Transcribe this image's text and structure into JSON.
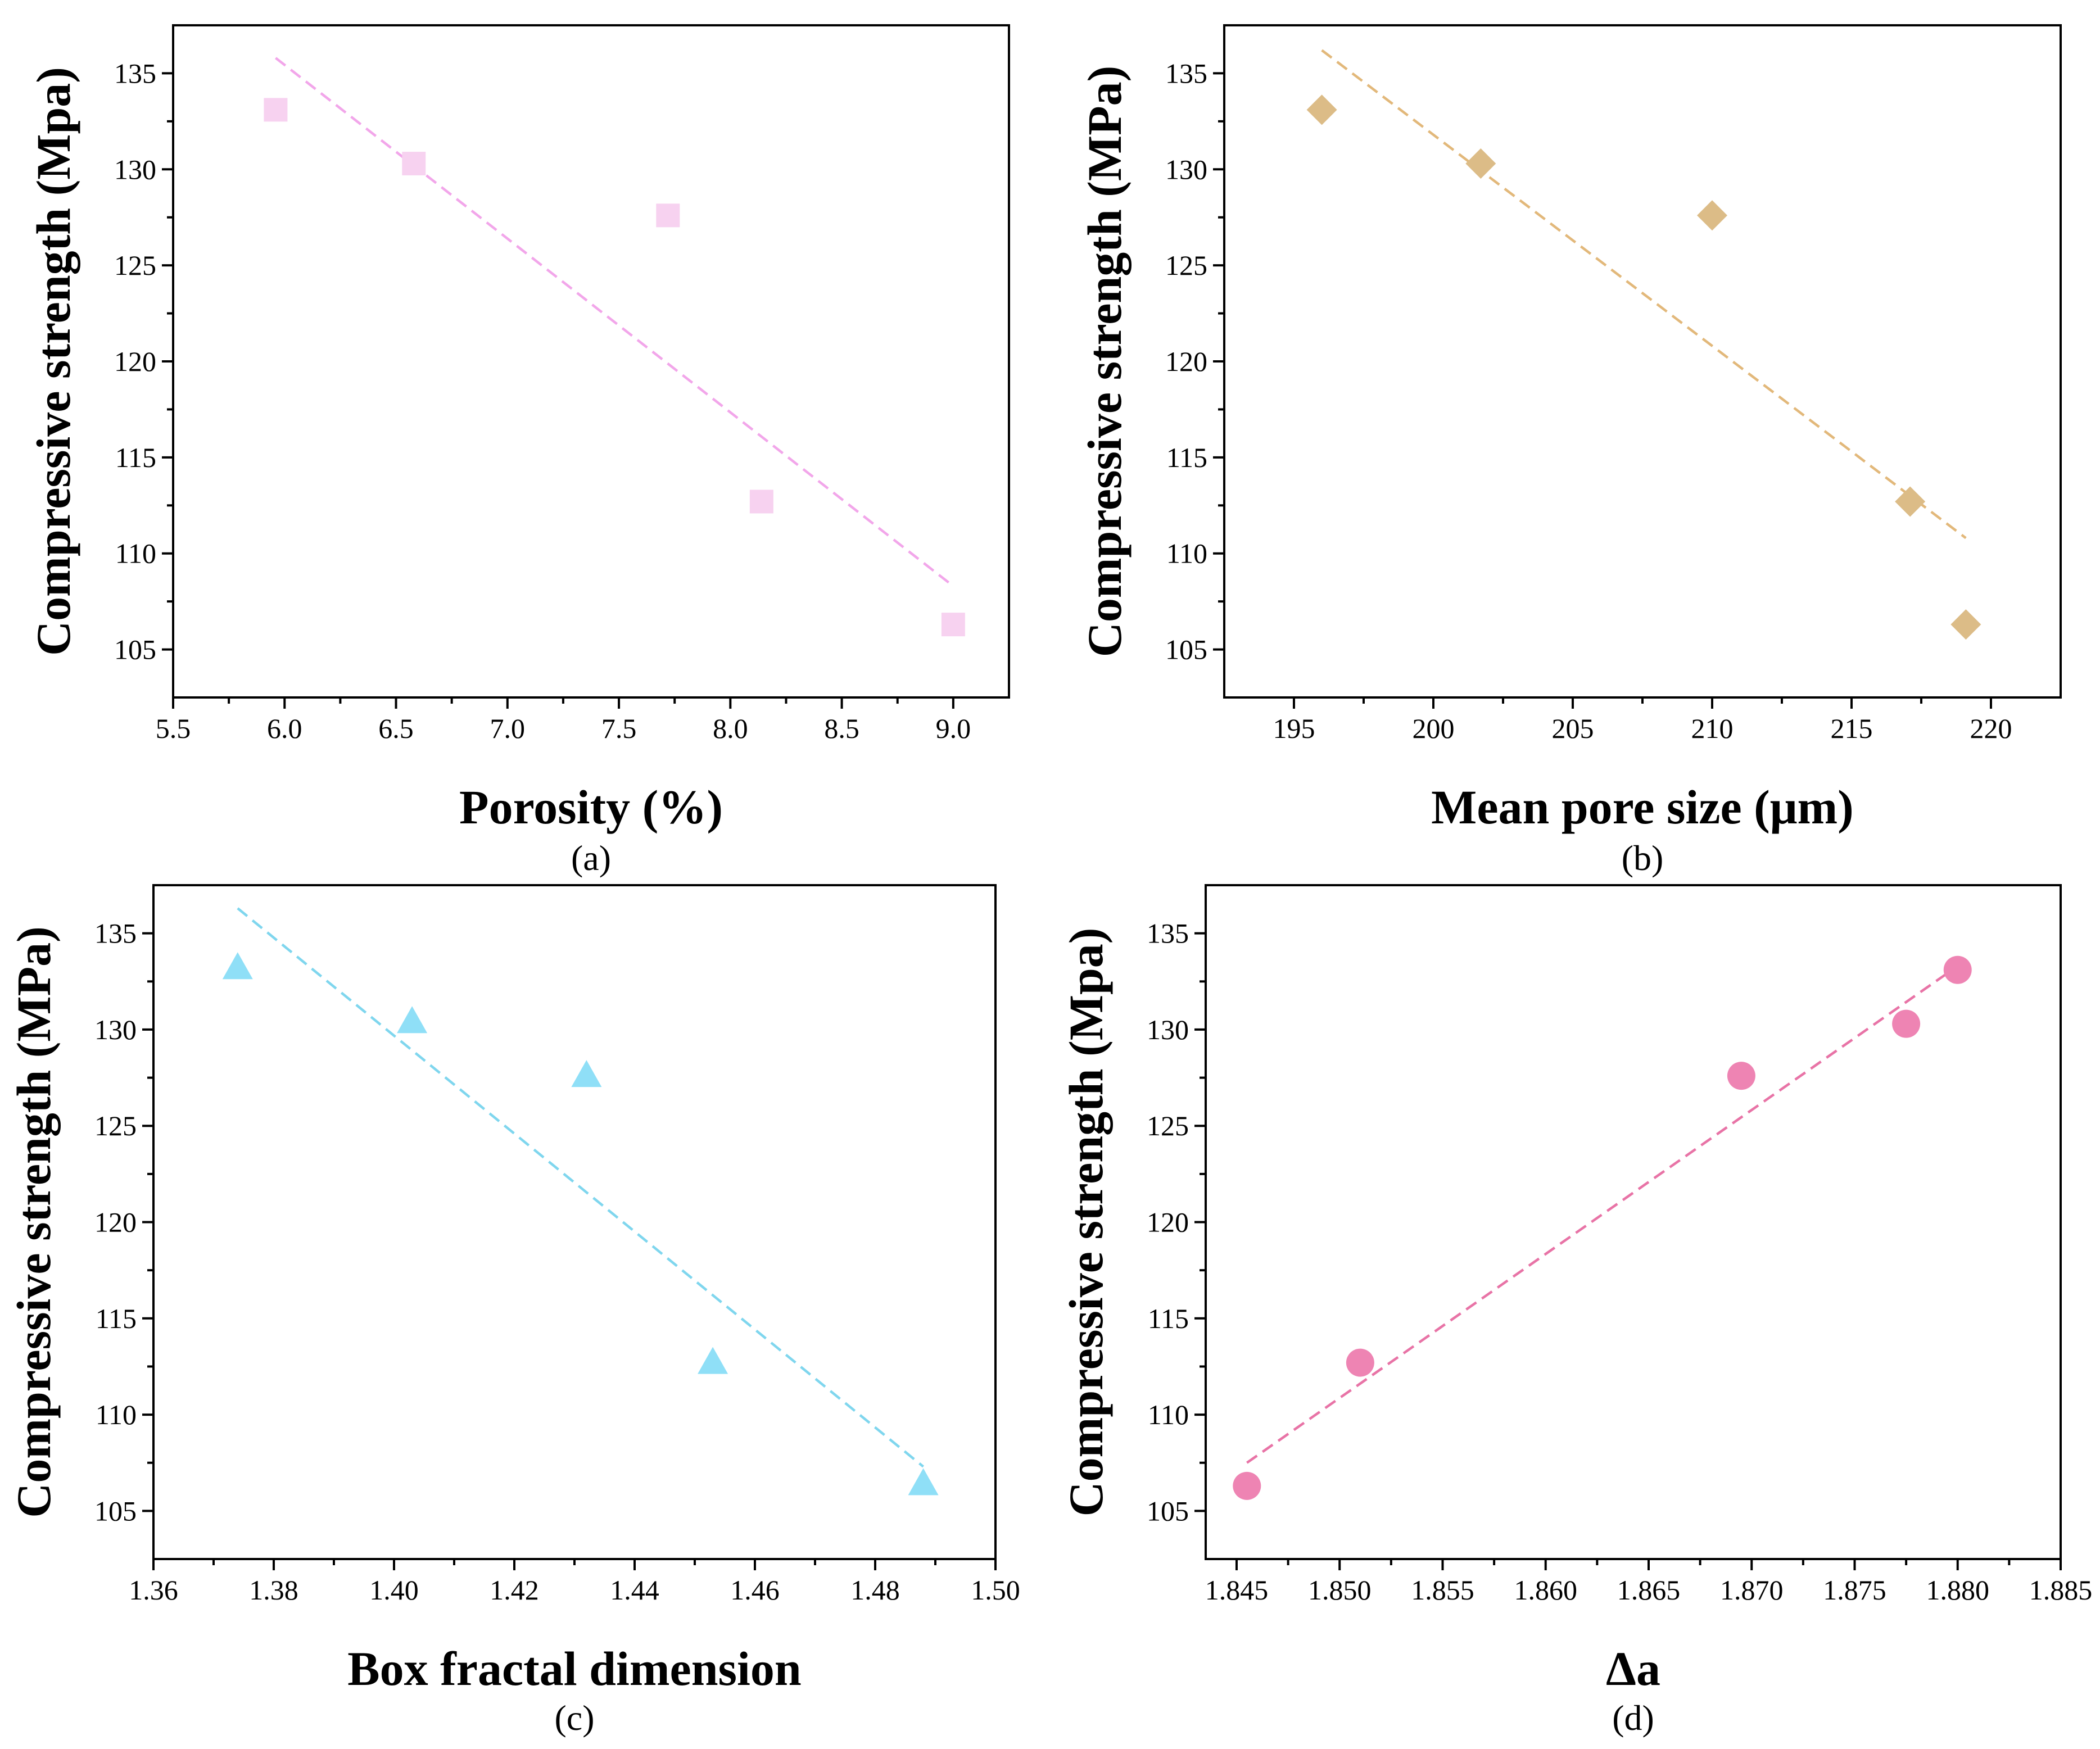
{
  "figure": {
    "panels": [
      {
        "label": "(a)"
      },
      {
        "label": "(b)"
      },
      {
        "label": "(c)"
      },
      {
        "label": "(d)"
      }
    ]
  },
  "chart_data": [
    {
      "type": "scatter",
      "panel": "(a)",
      "xlabel": "Porosity (%)",
      "ylabel": "Compressive strength (Mpa)",
      "xlim": [
        5.5,
        9.25
      ],
      "ylim": [
        102.5,
        137.5
      ],
      "xticks": [
        5.5,
        6.0,
        6.5,
        7.0,
        7.5,
        8.0,
        8.5,
        9.0
      ],
      "xtick_labels": [
        "5.5",
        "6.0",
        "6.5",
        "7.0",
        "7.5",
        "8.0",
        "8.5",
        "9.0"
      ],
      "yticks": [
        105,
        110,
        115,
        120,
        125,
        130,
        135
      ],
      "ytick_labels": [
        "105",
        "110",
        "115",
        "120",
        "125",
        "130",
        "135"
      ],
      "marker": "square",
      "marker_color": "#f7d2f0",
      "line_color": "#f2a6ea",
      "points": [
        {
          "x": 5.96,
          "y": 133.1
        },
        {
          "x": 6.58,
          "y": 130.3
        },
        {
          "x": 7.72,
          "y": 127.6
        },
        {
          "x": 8.14,
          "y": 112.7
        },
        {
          "x": 9.0,
          "y": 106.3
        }
      ],
      "fit_line": [
        [
          5.96,
          135.8
        ],
        [
          9.0,
          108.3
        ]
      ]
    },
    {
      "type": "scatter",
      "panel": "(b)",
      "xlabel": "Mean pore size (μm)",
      "ylabel": "Compressive strength (MPa)",
      "xlim": [
        192.5,
        222.5
      ],
      "ylim": [
        102.5,
        137.5
      ],
      "xticks": [
        195,
        200,
        205,
        210,
        215,
        220
      ],
      "xtick_labels": [
        "195",
        "200",
        "205",
        "210",
        "215",
        "220"
      ],
      "yticks": [
        105,
        110,
        115,
        120,
        125,
        130,
        135
      ],
      "ytick_labels": [
        "105",
        "110",
        "115",
        "120",
        "125",
        "130",
        "135"
      ],
      "marker": "diamond",
      "marker_color": "#dcbc87",
      "line_color": "#e2b87a",
      "points": [
        {
          "x": 196.0,
          "y": 133.1
        },
        {
          "x": 201.7,
          "y": 130.3
        },
        {
          "x": 210.0,
          "y": 127.6
        },
        {
          "x": 217.1,
          "y": 112.7
        },
        {
          "x": 219.1,
          "y": 106.3
        }
      ],
      "fit_line": [
        [
          196.0,
          136.2
        ],
        [
          219.1,
          110.8
        ]
      ]
    },
    {
      "type": "scatter",
      "panel": "(c)",
      "xlabel": "Box fractal dimension",
      "ylabel": "Compressive strength (MPa)",
      "xlim": [
        1.36,
        1.5
      ],
      "ylim": [
        102.5,
        137.5
      ],
      "xticks": [
        1.36,
        1.38,
        1.4,
        1.42,
        1.44,
        1.46,
        1.48,
        1.5
      ],
      "xtick_labels": [
        "1.36",
        "1.38",
        "1.40",
        "1.42",
        "1.44",
        "1.46",
        "1.48",
        "1.50"
      ],
      "yticks": [
        105,
        110,
        115,
        120,
        125,
        130,
        135
      ],
      "ytick_labels": [
        "105",
        "110",
        "115",
        "120",
        "125",
        "130",
        "135"
      ],
      "marker": "triangle",
      "marker_color": "#8fdff7",
      "line_color": "#7fd6ee",
      "points": [
        {
          "x": 1.374,
          "y": 133.2
        },
        {
          "x": 1.403,
          "y": 130.4
        },
        {
          "x": 1.432,
          "y": 127.6
        },
        {
          "x": 1.453,
          "y": 112.7
        },
        {
          "x": 1.488,
          "y": 106.4
        }
      ],
      "fit_line": [
        [
          1.374,
          136.3
        ],
        [
          1.488,
          107.3
        ]
      ]
    },
    {
      "type": "scatter",
      "panel": "(d)",
      "xlabel": "Δa",
      "ylabel": "Compressive strength (Mpa)",
      "xlim": [
        1.8435,
        1.885
      ],
      "ylim": [
        102.5,
        137.5
      ],
      "xticks": [
        1.845,
        1.85,
        1.855,
        1.86,
        1.865,
        1.87,
        1.875,
        1.88,
        1.885
      ],
      "xtick_labels": [
        "1.845",
        "1.850",
        "1.855",
        "1.860",
        "1.865",
        "1.870",
        "1.875",
        "1.880",
        "1.885"
      ],
      "yticks": [
        105,
        110,
        115,
        120,
        125,
        130,
        135
      ],
      "ytick_labels": [
        "105",
        "110",
        "115",
        "120",
        "125",
        "130",
        "135"
      ],
      "marker": "circle",
      "marker_color": "#ee84b3",
      "line_color": "#e873a6",
      "points": [
        {
          "x": 1.8455,
          "y": 106.3
        },
        {
          "x": 1.851,
          "y": 112.7
        },
        {
          "x": 1.8695,
          "y": 127.6
        },
        {
          "x": 1.8775,
          "y": 130.3
        },
        {
          "x": 1.88,
          "y": 133.1
        }
      ],
      "fit_line": [
        [
          1.8455,
          107.5
        ],
        [
          1.88,
          133.3
        ]
      ]
    }
  ]
}
